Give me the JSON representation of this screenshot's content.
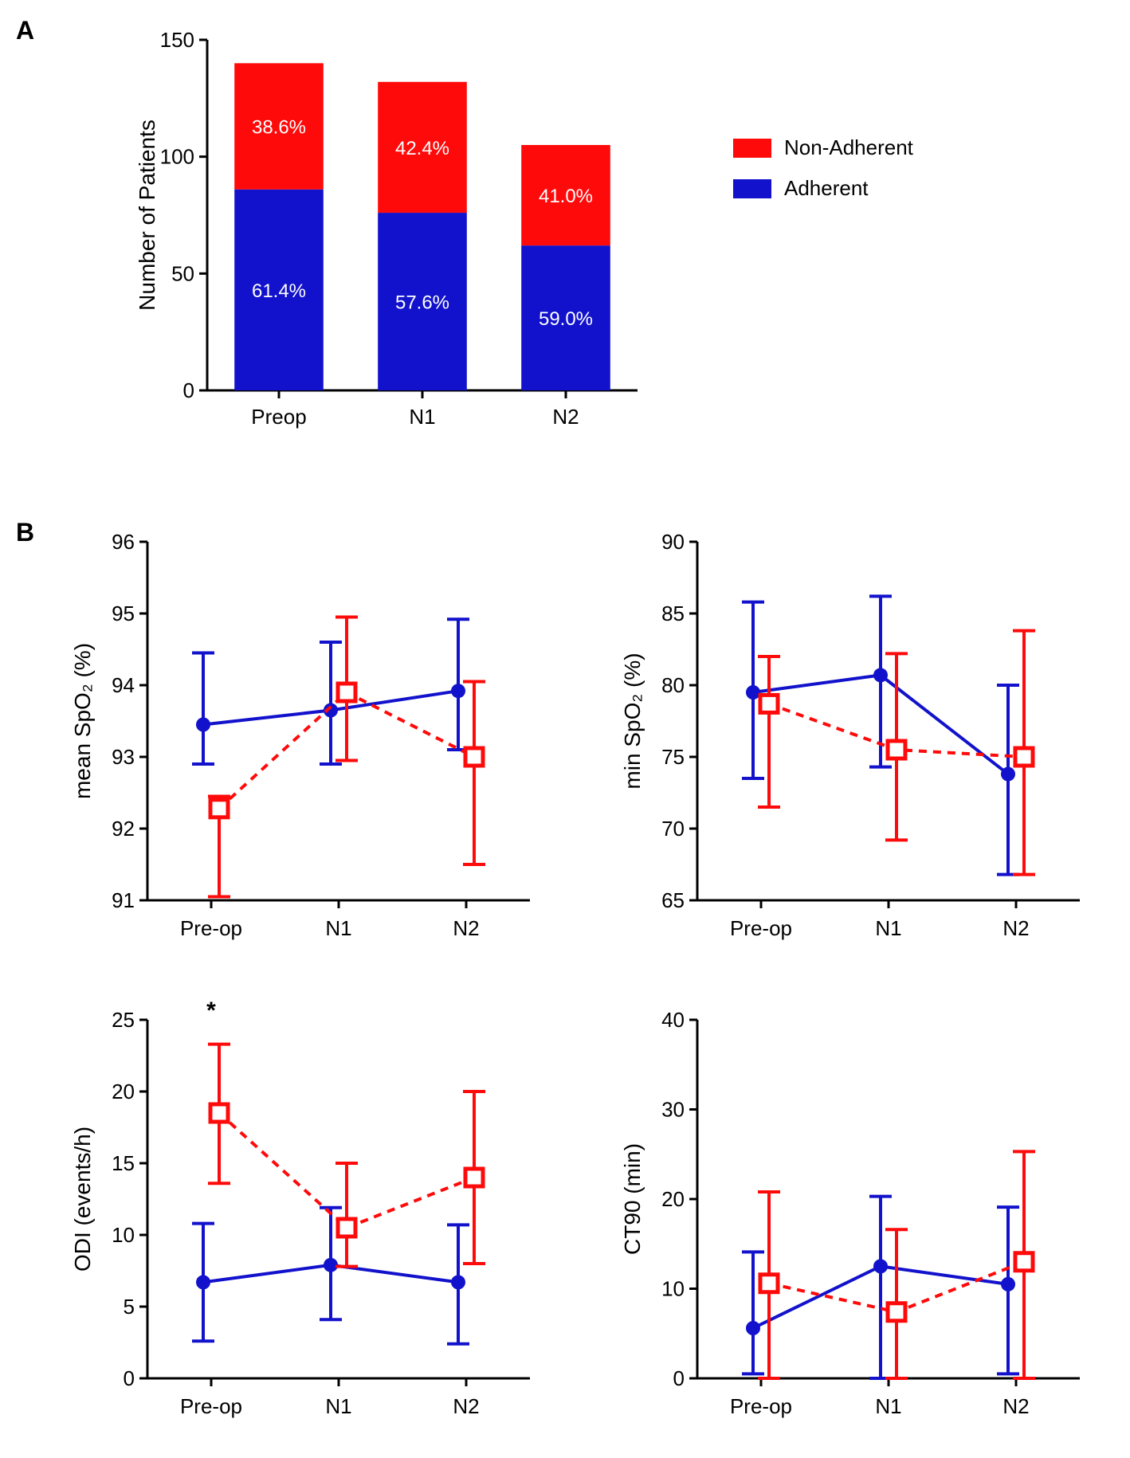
{
  "colors": {
    "adherent": "#1212cc",
    "nonAdherent": "#ff0a0a",
    "axis": "#000000",
    "bg": "#ffffff",
    "textOnBar": "#ffffff"
  },
  "panelA": {
    "label": "A",
    "ylabel": "Number of Patients",
    "ylim": [
      0,
      150
    ],
    "ytick_step": 50,
    "categories": [
      "Preop",
      "N1",
      "N2"
    ],
    "bars": [
      {
        "adherent": 86,
        "nonAdherent": 54,
        "adhPct": "61.4%",
        "nonPct": "38.6%"
      },
      {
        "adherent": 76,
        "nonAdherent": 56,
        "adhPct": "57.6%",
        "nonPct": "42.4%"
      },
      {
        "adherent": 62,
        "nonAdherent": 43,
        "adhPct": "59.0%",
        "nonPct": "41.0%"
      }
    ],
    "legend": [
      {
        "label": "Non-Adherent",
        "colorKey": "nonAdherent"
      },
      {
        "label": "Adherent",
        "colorKey": "adherent"
      }
    ]
  },
  "panelB": {
    "label": "B",
    "xcats": [
      "Pre-op",
      "N1",
      "N2"
    ],
    "plots": [
      {
        "ylabel": "mean SpO₂ (%)",
        "ylim": [
          91,
          96
        ],
        "ytick_step": 1,
        "series": {
          "adherent": {
            "y": [
              93.45,
              93.65,
              93.92
            ],
            "errLow": [
              0.55,
              0.75,
              0.82
            ],
            "errHigh": [
              1.0,
              0.95,
              1.0
            ]
          },
          "nonAdherent": {
            "y": [
              92.28,
              93.9,
              93.0
            ],
            "errLow": [
              1.23,
              0.95,
              1.5
            ],
            "errHigh": [
              0.17,
              1.05,
              1.05
            ]
          }
        }
      },
      {
        "ylabel": "min SpO₂ (%)",
        "ylim": [
          65,
          90
        ],
        "ytick_step": 5,
        "series": {
          "adherent": {
            "y": [
              79.5,
              80.7,
              73.8
            ],
            "errLow": [
              6.0,
              6.4,
              7.0
            ],
            "errHigh": [
              6.3,
              5.5,
              6.2
            ]
          },
          "nonAdherent": {
            "y": [
              78.7,
              75.5,
              75.0
            ],
            "errLow": [
              7.2,
              6.3,
              8.2
            ],
            "errHigh": [
              3.3,
              6.7,
              8.8
            ]
          }
        }
      },
      {
        "ylabel": "ODI (events/h)",
        "ylim": [
          0,
          25
        ],
        "ytick_step": 5,
        "sig": {
          "x": 0,
          "text": "*"
        },
        "series": {
          "adherent": {
            "y": [
              6.7,
              7.9,
              6.7
            ],
            "errLow": [
              4.1,
              3.8,
              4.3
            ],
            "errHigh": [
              4.1,
              4.0,
              4.0
            ]
          },
          "nonAdherent": {
            "y": [
              18.5,
              10.5,
              14.0
            ],
            "errLow": [
              4.9,
              2.7,
              6.0
            ],
            "errHigh": [
              4.8,
              4.5,
              6.0
            ]
          }
        }
      },
      {
        "ylabel": "CT90 (min)",
        "ylim": [
          0,
          40
        ],
        "ytick_step": 10,
        "series": {
          "adherent": {
            "y": [
              5.6,
              12.5,
              10.5
            ],
            "errLow": [
              5.1,
              12.5,
              10.0
            ],
            "errHigh": [
              8.5,
              7.8,
              8.6
            ]
          },
          "nonAdherent": {
            "y": [
              10.6,
              7.4,
              13.0
            ],
            "errLow": [
              10.6,
              7.4,
              13.0
            ],
            "errHigh": [
              10.2,
              9.2,
              12.3
            ]
          }
        }
      }
    ],
    "style": {
      "lineWidth": 4,
      "markerSize": 9,
      "errCapWidth": 14,
      "axisFontSize": 28,
      "tickFontSize": 26,
      "adherentMarker": "filled-circle",
      "nonAdherentMarker": "open-square",
      "dashPattern": "10,8"
    }
  }
}
